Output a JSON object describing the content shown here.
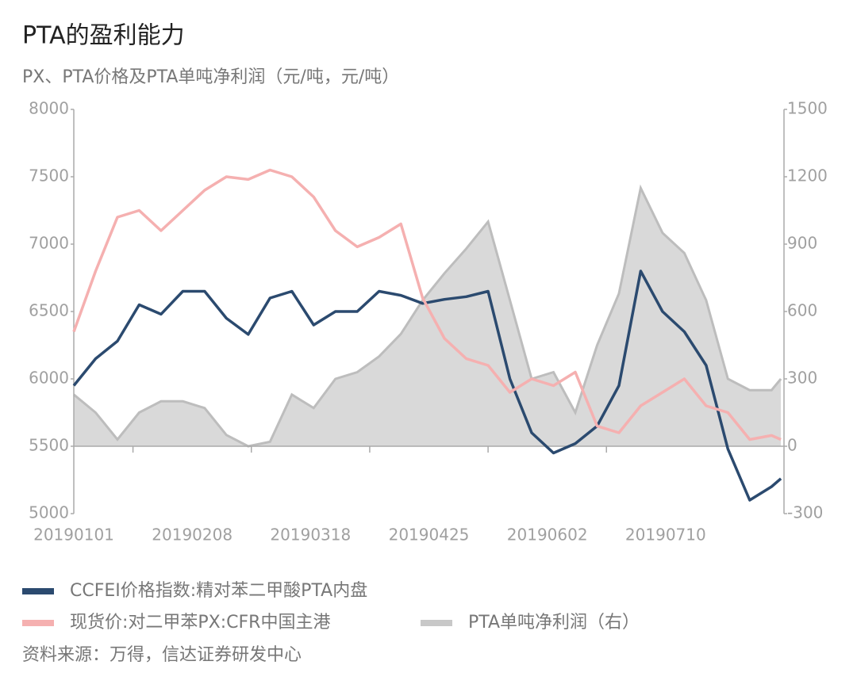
{
  "chart_data": {
    "type": "line",
    "title": "PTA的盈利能力",
    "subtitle": "PX、PTA价格及PTA单吨净利润（元/吨，元/吨）",
    "source": "资料来源：万得，信达证券研发中心",
    "x": [
      "20190101",
      "20190108",
      "20190115",
      "20190122",
      "20190129",
      "20190205",
      "20190212",
      "20190219",
      "20190226",
      "20190305",
      "20190312",
      "20190319",
      "20190326",
      "20190402",
      "20190409",
      "20190416",
      "20190423",
      "20190430",
      "20190507",
      "20190514",
      "20190521",
      "20190528",
      "20190604",
      "20190611",
      "20190618",
      "20190625",
      "20190702",
      "20190709",
      "20190716",
      "20190723",
      "20190730",
      "20190806",
      "20190813",
      "20190816"
    ],
    "xlim": [
      "20190101",
      "20190817"
    ],
    "xticks": [
      "20190101",
      "20190208",
      "20190318",
      "20190425",
      "20190602",
      "20190710"
    ],
    "ylim": [
      5000,
      8000
    ],
    "yticks": [
      5000,
      5500,
      6000,
      6500,
      7000,
      7500,
      8000
    ],
    "y2lim": [
      -300,
      1500
    ],
    "y2ticks": [
      -300,
      0,
      300,
      600,
      900,
      1200,
      1500
    ],
    "legend": "bottom",
    "series": [
      {
        "name": "CCFEI价格指数:精对苯二甲酸PTA内盘",
        "color": "#2b4a6f",
        "values": [
          5950,
          6150,
          6280,
          6550,
          6480,
          6650,
          6650,
          6450,
          6330,
          6600,
          6650,
          6400,
          6500,
          6500,
          6650,
          6620,
          6560,
          6590,
          6610,
          6650,
          6000,
          5600,
          5450,
          5520,
          5650,
          5950,
          6800,
          6500,
          6350,
          6100,
          5480,
          5100,
          5200,
          5260
        ]
      },
      {
        "name": "现货价:对二甲苯PX:CFR中国主港",
        "color": "#f5b0b0",
        "values": [
          6350,
          6800,
          7200,
          7250,
          7100,
          7250,
          7400,
          7500,
          7480,
          7550,
          7500,
          7350,
          7100,
          6980,
          7050,
          7150,
          6600,
          6300,
          6150,
          6100,
          5900,
          6000,
          5950,
          6050,
          5650,
          5600,
          5800,
          5900,
          6000,
          5800,
          5750,
          5550,
          5580,
          5550
        ]
      },
      {
        "name": "PTA单吨净利润（右）",
        "color": "#bdbdbd",
        "fill": "#d9d9d9",
        "axis": "y2",
        "values": [
          230,
          150,
          30,
          150,
          200,
          200,
          170,
          50,
          0,
          20,
          230,
          170,
          300,
          330,
          400,
          500,
          650,
          770,
          880,
          1000,
          650,
          300,
          330,
          150,
          450,
          680,
          1150,
          950,
          860,
          650,
          300,
          250,
          250,
          300
        ]
      }
    ]
  }
}
